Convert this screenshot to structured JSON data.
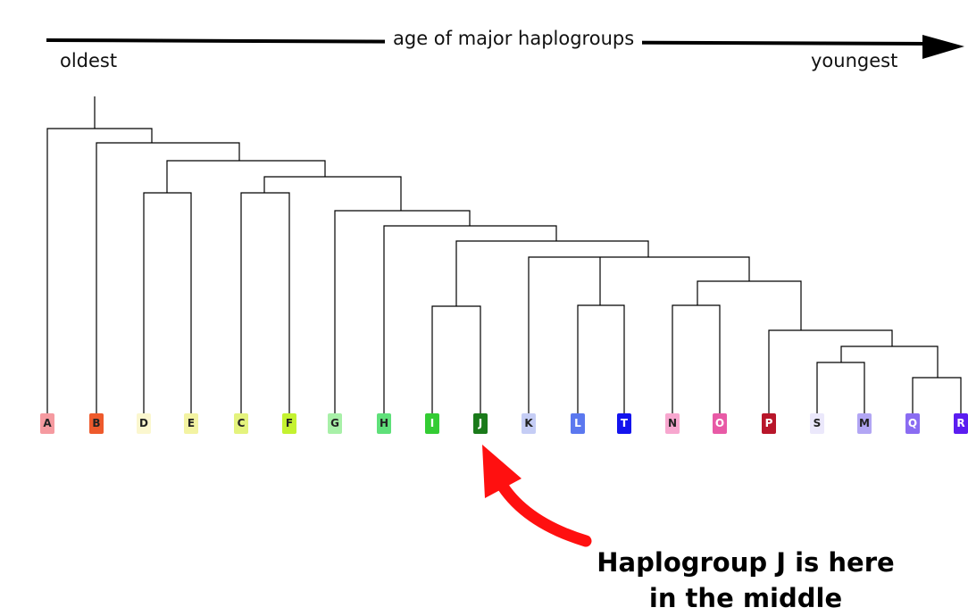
{
  "header": {
    "axis_label": "age of major haplogroups",
    "oldest_label": "oldest",
    "youngest_label": "youngest"
  },
  "leaves": [
    {
      "label": "A",
      "color": "#f59aa0",
      "text_color": "#222222"
    },
    {
      "label": "B",
      "color": "#ee5a2c",
      "text_color": "#222222"
    },
    {
      "label": "D",
      "color": "#fbf7cf",
      "text_color": "#222222"
    },
    {
      "label": "E",
      "color": "#f3f3a2",
      "text_color": "#222222"
    },
    {
      "label": "C",
      "color": "#e4f37d",
      "text_color": "#222222"
    },
    {
      "label": "F",
      "color": "#c4f230",
      "text_color": "#222222"
    },
    {
      "label": "G",
      "color": "#a8f0a8",
      "text_color": "#222222"
    },
    {
      "label": "H",
      "color": "#5fe07a",
      "text_color": "#222222"
    },
    {
      "label": "I",
      "color": "#33cc33",
      "text_color": "#ffffff"
    },
    {
      "label": "J",
      "color": "#1a7a1a",
      "text_color": "#ffffff"
    },
    {
      "label": "K",
      "color": "#c5cdf5",
      "text_color": "#222222"
    },
    {
      "label": "L",
      "color": "#5b78ef",
      "text_color": "#ffffff"
    },
    {
      "label": "T",
      "color": "#1414ee",
      "text_color": "#ffffff"
    },
    {
      "label": "N",
      "color": "#f7a7cf",
      "text_color": "#222222"
    },
    {
      "label": "O",
      "color": "#e85aa6",
      "text_color": "#ffffff"
    },
    {
      "label": "P",
      "color": "#b8162a",
      "text_color": "#ffffff"
    },
    {
      "label": "S",
      "color": "#ebe8fb",
      "text_color": "#222222"
    },
    {
      "label": "M",
      "color": "#b2a6f4",
      "text_color": "#222222"
    },
    {
      "label": "Q",
      "color": "#8a6cf2",
      "text_color": "#ffffff"
    },
    {
      "label": "R",
      "color": "#5b1df0",
      "text_color": "#ffffff"
    }
  ],
  "callout": {
    "line1": "Haplogroup J is here",
    "line2": "in the middle",
    "arrow_color": "#ff1010"
  }
}
